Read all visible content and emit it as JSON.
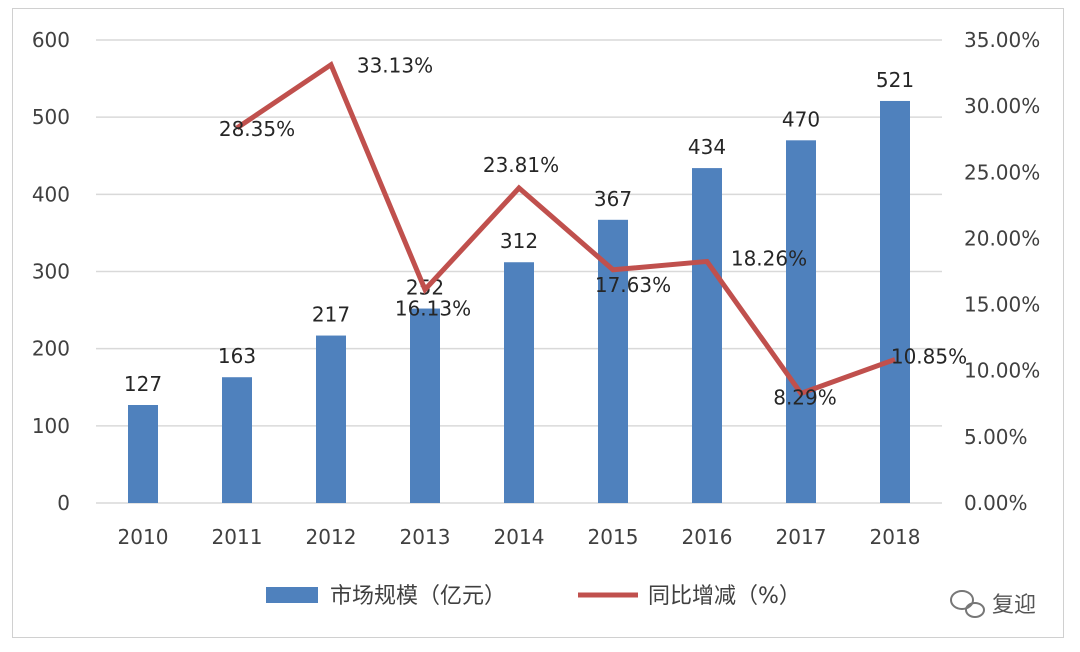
{
  "chart_data": {
    "type": "bar",
    "categories": [
      "2010",
      "2011",
      "2012",
      "2013",
      "2014",
      "2015",
      "2016",
      "2017",
      "2018"
    ],
    "series": [
      {
        "name": "市场规模（亿元）",
        "type": "bar",
        "axis": "left",
        "values": [
          127,
          163,
          217,
          252,
          312,
          367,
          434,
          470,
          521
        ],
        "labels": [
          "127",
          "163",
          "217",
          "252",
          "312",
          "367",
          "434",
          "470",
          "521"
        ]
      },
      {
        "name": "同比增减（%）",
        "type": "line",
        "axis": "right",
        "values": [
          null,
          28.35,
          33.13,
          16.13,
          23.81,
          17.63,
          18.26,
          8.29,
          10.85
        ],
        "labels": [
          "",
          "28.35%",
          "33.13%",
          "16.13%",
          "23.81%",
          "17.63%",
          "18.26%",
          "8.29%",
          "10.85%"
        ]
      }
    ],
    "y_left": {
      "range": [
        0,
        600
      ],
      "ticks": [
        "0",
        "100",
        "200",
        "300",
        "400",
        "500",
        "600"
      ]
    },
    "y_right": {
      "range": [
        0,
        35
      ],
      "ticks": [
        "0.00%",
        "5.00%",
        "10.00%",
        "15.00%",
        "20.00%",
        "25.00%",
        "30.00%",
        "35.00%"
      ]
    },
    "grid": true,
    "legend_position": "bottom",
    "colors": {
      "bar": "#4f81bd",
      "line": "#c0504d",
      "grid": "#d9d9d9"
    }
  },
  "watermark": {
    "text": "复迎",
    "icon": "wechat-icon"
  }
}
